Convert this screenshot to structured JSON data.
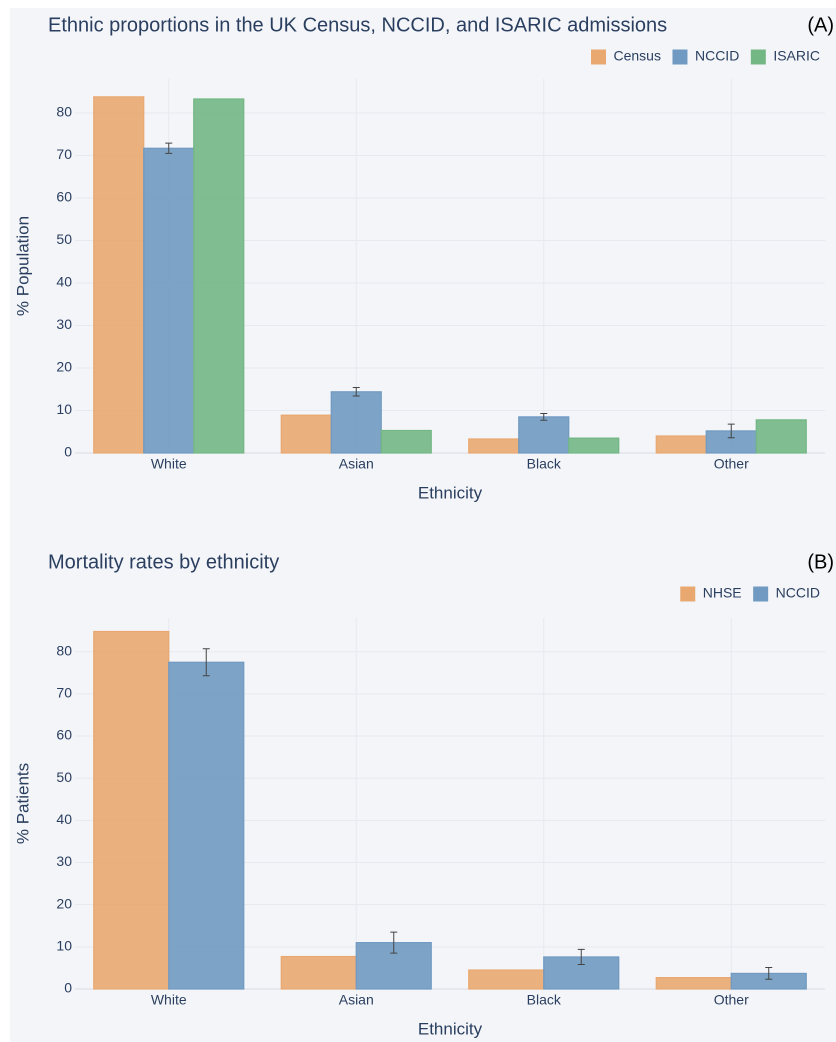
{
  "chart_data": [
    {
      "type": "bar",
      "title": "Ethnic proportions in the UK Census, NCCID, and ISARIC admissions",
      "panel_label": "(A)",
      "x_label": "Ethnicity",
      "y_label": "% Population",
      "categories": [
        "White",
        "Asian",
        "Black",
        "Other"
      ],
      "series": [
        {
          "name": "Census",
          "color": "#fdb77a",
          "values": [
            83.8,
            8.9,
            3.3,
            4.0
          ]
        },
        {
          "name": "NCCID",
          "color": "#7aa7d3",
          "values": [
            71.7,
            14.4,
            8.5,
            5.2
          ],
          "errors": [
            1.2,
            1.0,
            0.8,
            1.6
          ]
        },
        {
          "name": "ISARIC",
          "color": "#7dc790",
          "values": [
            83.3,
            5.3,
            3.5,
            7.8
          ]
        }
      ],
      "ylim": [
        0,
        88
      ],
      "yticks": [
        0,
        10,
        20,
        30,
        40,
        50,
        60,
        70,
        80
      ],
      "grid": true,
      "legend": "top-right"
    },
    {
      "type": "bar",
      "title": "Mortality rates by ethnicity",
      "panel_label": "(B)",
      "x_label": "Ethnicity",
      "y_label": "% Patients",
      "categories": [
        "White",
        "Asian",
        "Black",
        "Other"
      ],
      "series": [
        {
          "name": "NHSE",
          "color": "#fdb77a",
          "values": [
            84.8,
            7.7,
            4.5,
            2.7
          ]
        },
        {
          "name": "NCCID",
          "color": "#7aa7d3",
          "values": [
            77.5,
            11.0,
            7.6,
            3.7
          ],
          "errors": [
            3.2,
            2.5,
            1.8,
            1.4
          ]
        }
      ],
      "ylim": [
        0,
        88
      ],
      "yticks": [
        0,
        10,
        20,
        30,
        40,
        50,
        60,
        70,
        80
      ],
      "grid": true,
      "legend": "top-right"
    }
  ]
}
